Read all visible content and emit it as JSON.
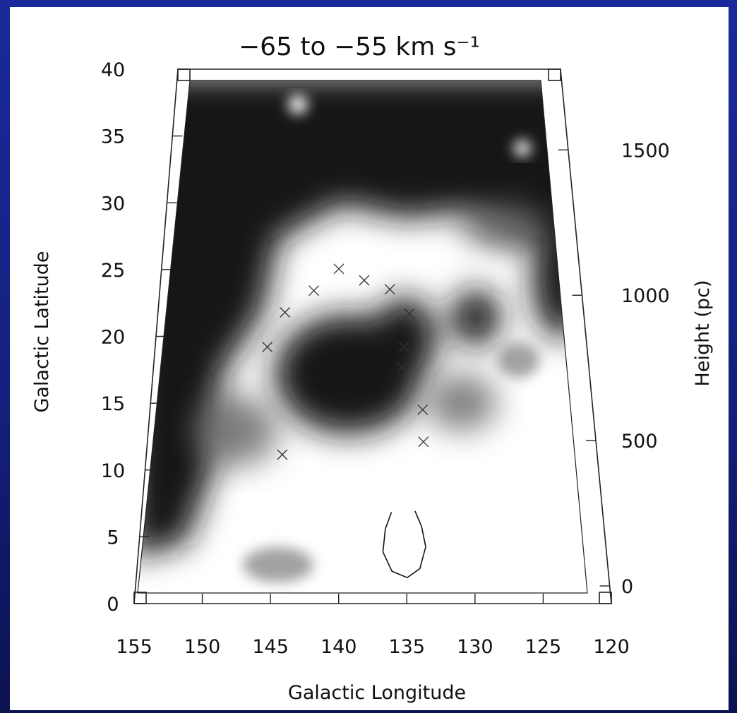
{
  "chart_data": {
    "type": "heatmap",
    "title": "−65 to −55 km s⁻¹",
    "xlabel": "Galactic Longitude",
    "ylabel": "Galactic Latitude",
    "y2label": "Height (pc)",
    "xlim": [
      155,
      120
    ],
    "ylim": [
      0,
      40
    ],
    "y2lim": [
      0,
      1700
    ],
    "x_ticks": [
      155,
      150,
      145,
      140,
      135,
      130,
      125,
      120
    ],
    "y_ticks": [
      0,
      5,
      10,
      15,
      20,
      25,
      30,
      35,
      40
    ],
    "y2_ticks": [
      0,
      500,
      1000,
      1500
    ],
    "colormap": "grayscale (dark = high intensity, white = low)",
    "markers": {
      "symbol": "x",
      "points": [
        {
          "l": 139.8,
          "b": 25.3
        },
        {
          "l": 137.5,
          "b": 24.4
        },
        {
          "l": 135.2,
          "b": 23.7
        },
        {
          "l": 142.0,
          "b": 23.6
        },
        {
          "l": 144.5,
          "b": 21.9
        },
        {
          "l": 133.5,
          "b": 21.8
        },
        {
          "l": 145.9,
          "b": 19.2
        },
        {
          "l": 134.0,
          "b": 19.2
        },
        {
          "l": 134.2,
          "b": 17.6
        },
        {
          "l": 132.5,
          "b": 14.3
        },
        {
          "l": 132.5,
          "b": 11.8
        },
        {
          "l": 144.2,
          "b": 10.8
        }
      ]
    },
    "contour": {
      "level": "single closed contour",
      "points": [
        {
          "l": 135.2,
          "b": 6.3
        },
        {
          "l": 135.7,
          "b": 5.0
        },
        {
          "l": 135.9,
          "b": 3.2
        },
        {
          "l": 135.2,
          "b": 1.7
        },
        {
          "l": 134.0,
          "b": 1.2
        },
        {
          "l": 133.0,
          "b": 1.9
        },
        {
          "l": 132.5,
          "b": 3.6
        },
        {
          "l": 132.8,
          "b": 5.2
        },
        {
          "l": 133.3,
          "b": 6.4
        }
      ]
    }
  }
}
